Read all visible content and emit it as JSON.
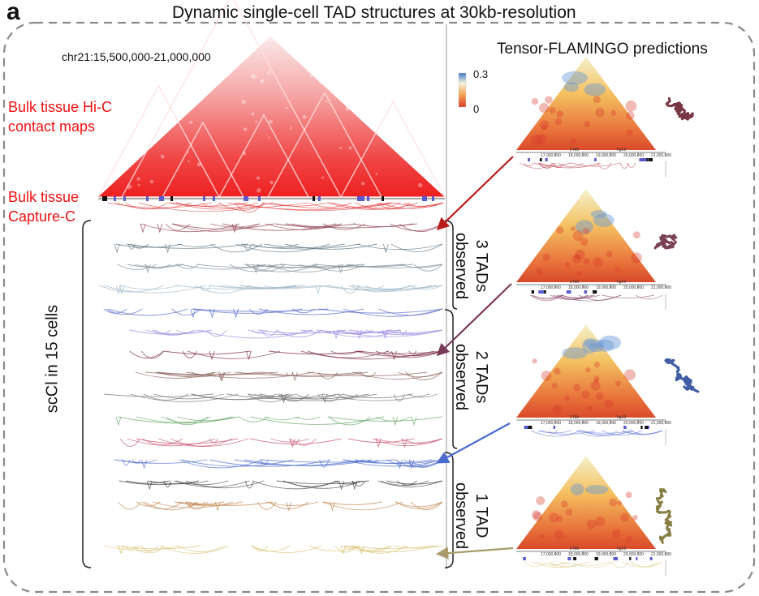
{
  "figure": {
    "panel_letter": "a",
    "title": "Dynamic single-cell TAD structures at 30kb-resolution",
    "region": "chr21:15,500,000-21,000,000",
    "predictions_title": "Tensor-FLAMINGO predictions",
    "bulk_hic": [
      "Bulk tissue Hi-C",
      "contact maps"
    ],
    "bulk_capture": [
      "Bulk tissue",
      "Capture-C"
    ],
    "sccl_label": "scCl in 15 cells",
    "colorbar": {
      "max": "0.3",
      "min": "0"
    },
    "groups": [
      {
        "line1": "3 TADs",
        "line2": "observed"
      },
      {
        "line1": "2 TADs",
        "line2": "observed"
      },
      {
        "line1": "1 TAD",
        "line2": "observed"
      }
    ],
    "tick_scale": "2 Mb",
    "tick_build": "hg19",
    "tick_labels": [
      "17,000,000",
      "18,000,000",
      "19,000,000",
      "20,000,000",
      "21,000,000"
    ]
  },
  "colors": {
    "bulk_text": "#ee1111",
    "hic": "#f03030",
    "track_colors": [
      "#8b3a4a",
      "#5e7480",
      "#7f8a94",
      "#9fb8c8",
      "#4a5fc8",
      "#9a86e0",
      "#7a2a40",
      "#8a6058",
      "#707070",
      "#6aaa6a",
      "#c8506e",
      "#4a6acc",
      "#404040",
      "#c08048",
      "#d8c070"
    ],
    "prediction_arrows": [
      "#b81c1c",
      "#7a3a5a",
      "#4a6ad0",
      "#a89c6a"
    ],
    "structures": [
      "#6a2030",
      "#6a2c40",
      "#2a4a9a",
      "#7a7030"
    ]
  }
}
